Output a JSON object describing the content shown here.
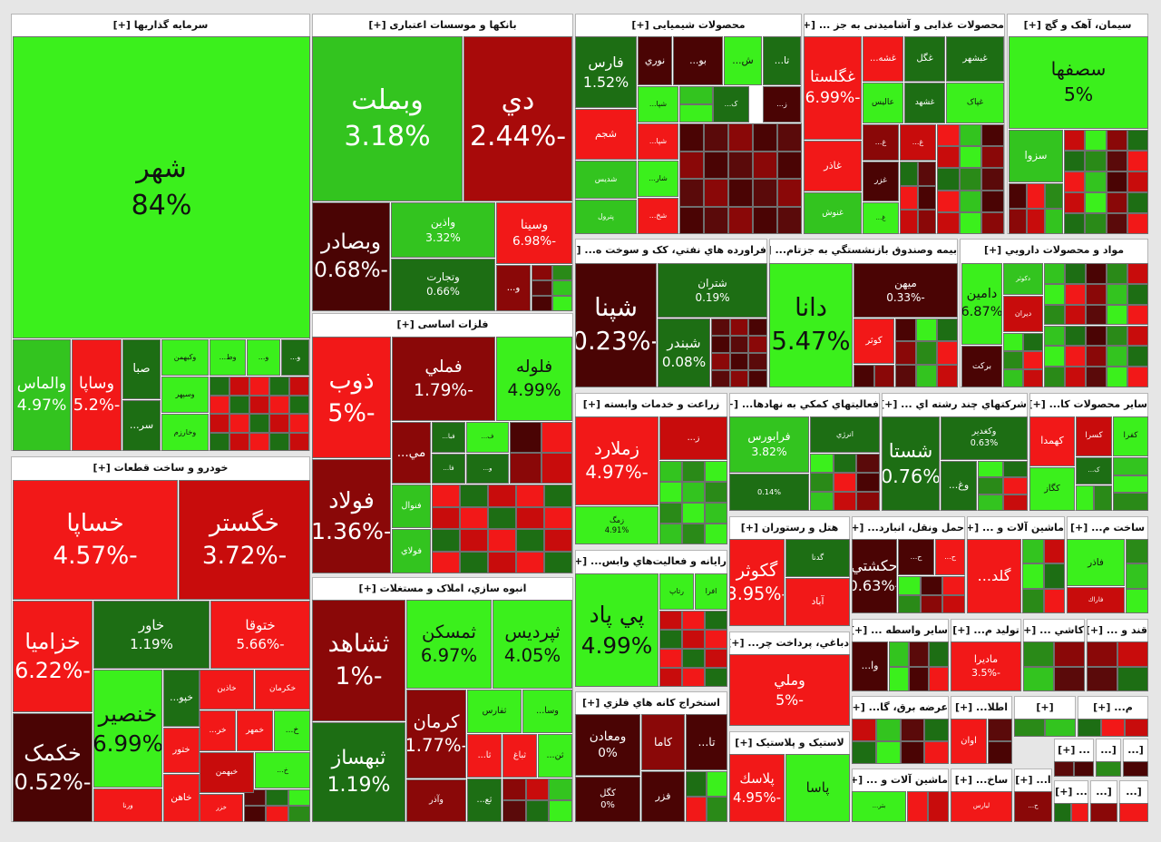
{
  "sectors": [
    {
      "title": "سرمایه گذاریها [+]",
      "tiles": [
        {
          "label": "شهر",
          "change": "84%",
          "color": "#3bf01c"
        },
        {
          "label": "والماس",
          "change": "4.97%",
          "color": "#33c41f"
        },
        {
          "label": "وساپا",
          "change": "-5.2%",
          "color": "#f21818"
        },
        {
          "label": "صبا",
          "color": "#1d6e14"
        },
        {
          "label": "وکبهمن",
          "color": "#3bf01c"
        },
        {
          "label": "وط...",
          "color": "#3bf01c"
        },
        {
          "label": "و...",
          "color": "#3bf01c"
        },
        {
          "label": "و...",
          "color": "#1d6e14"
        },
        {
          "label": "سر...",
          "color": "#1d6e14"
        },
        {
          "label": "وسپهر",
          "color": "#3bf01c"
        },
        {
          "label": "وخارزم",
          "color": "#3bf01c"
        }
      ]
    },
    {
      "title": "بانکها و موسسات اعتباری [+]",
      "tiles": [
        {
          "label": "وبملت",
          "change": "3.18%",
          "color": "#33c41f"
        },
        {
          "label": "دي",
          "change": "-2.44%",
          "color": "#a80a0a"
        },
        {
          "label": "وبصادر",
          "change": "-0.68%",
          "color": "#4a0404"
        },
        {
          "label": "واذین",
          "change": "3.32%",
          "color": "#33c41f"
        },
        {
          "label": "وتجارت",
          "change": "0.66%",
          "color": "#1d6e14"
        },
        {
          "label": "وسینا",
          "change": "-6.98%",
          "color": "#f21818"
        },
        {
          "label": "و...",
          "color": "#8a0808"
        }
      ]
    },
    {
      "title": "فلزات اساسی [+]",
      "tiles": [
        {
          "label": "ذوب",
          "change": "-5%",
          "color": "#f21818"
        },
        {
          "label": "فملي",
          "change": "-1.79%",
          "color": "#8a0808"
        },
        {
          "label": "فلوله",
          "change": "4.99%",
          "color": "#3bf01c"
        },
        {
          "label": "فولاد",
          "change": "-1.36%",
          "color": "#8a0808"
        },
        {
          "label": "مي...",
          "color": "#8a0808"
        },
        {
          "label": "فبا...",
          "color": "#1d6e14"
        },
        {
          "label": "ف...",
          "color": "#3bf01c"
        },
        {
          "label": "فا...",
          "color": "#1d6e14"
        },
        {
          "label": "و...",
          "color": "#1d6e14"
        },
        {
          "label": "فنوال",
          "color": "#33c41f"
        },
        {
          "label": "فولاي",
          "color": "#33c41f"
        }
      ]
    },
    {
      "title": "خودرو و ساخت قطعات [+]",
      "tiles": [
        {
          "label": "خساپا",
          "change": "-4.57%",
          "color": "#f21818"
        },
        {
          "label": "خگستر",
          "change": "-3.72%",
          "color": "#c80c0c"
        },
        {
          "label": "خزامیا",
          "change": "-6.22%",
          "color": "#f21818"
        },
        {
          "label": "خاور",
          "change": "1.19%",
          "color": "#1d6e14"
        },
        {
          "label": "ختوقا",
          "change": "-5.66%",
          "color": "#f21818"
        },
        {
          "label": "خکمک",
          "change": "-0.52%",
          "color": "#4a0404"
        },
        {
          "label": "خنصیر",
          "change": "6.99%",
          "color": "#3bf01c"
        },
        {
          "label": "ورنا",
          "color": "#f21818"
        },
        {
          "label": "خپو...",
          "color": "#1d6e14"
        },
        {
          "label": "خاذين",
          "color": "#f21818"
        },
        {
          "label": "خكرمان",
          "color": "#f21818"
        },
        {
          "label": "خر...",
          "color": "#f21818"
        },
        {
          "label": "خمهر",
          "color": "#f21818"
        },
        {
          "label": "خ...",
          "color": "#3bf01c"
        },
        {
          "label": "ختور",
          "color": "#f21818"
        },
        {
          "label": "خبهمن",
          "color": "#c80c0c"
        },
        {
          "label": "خ...",
          "color": "#3bf01c"
        },
        {
          "label": "خاهن",
          "color": "#f21818"
        },
        {
          "label": "خزر",
          "color": "#f21818"
        }
      ]
    },
    {
      "title": "انبوه سازي، املاک و مستغلات [+]",
      "tiles": [
        {
          "label": "ثشاهد",
          "change": "-1%",
          "color": "#8a0808"
        },
        {
          "label": "ثبهساز",
          "change": "1.19%",
          "color": "#1d6e14"
        },
        {
          "label": "ثمسكن",
          "change": "6.97%",
          "color": "#3bf01c"
        },
        {
          "label": "ثپردیس",
          "change": "4.05%",
          "color": "#3bf01c"
        },
        {
          "label": "کرمان",
          "change": "-1.77%",
          "color": "#8a0808"
        },
        {
          "label": "وآذر",
          "color": "#8a0808"
        },
        {
          "label": "ثفارس",
          "color": "#3bf01c"
        },
        {
          "label": "وسا...",
          "color": "#3bf01c"
        },
        {
          "label": "ثا...",
          "color": "#f21818"
        },
        {
          "label": "ثباغ",
          "color": "#f21818"
        },
        {
          "label": "ثن...",
          "color": "#3bf01c"
        },
        {
          "label": "ثع...",
          "color": "#1d6e14"
        }
      ]
    },
    {
      "title": "محصولات شیمیایی [+]",
      "tiles": [
        {
          "label": "فارس",
          "change": "1.52%",
          "color": "#1d6e14"
        },
        {
          "label": "نوري",
          "color": "#4a0404"
        },
        {
          "label": "بو...",
          "color": "#4a0404"
        },
        {
          "label": "ش...",
          "color": "#3bf01c"
        },
        {
          "label": "تا...",
          "color": "#1d6e14"
        },
        {
          "label": "شپا...",
          "color": "#3bf01c"
        },
        {
          "label": "ک...",
          "color": "#1d6e14"
        },
        {
          "label": "ز...",
          "color": "#4a0404"
        },
        {
          "label": "شجم",
          "color": "#f21818"
        },
        {
          "label": "شپا...",
          "color": "#f21818"
        },
        {
          "label": "شار...",
          "color": "#3bf01c"
        },
        {
          "label": "شدیس",
          "color": "#33c41f"
        },
        {
          "label": "پترول",
          "color": "#33c41f"
        },
        {
          "label": "شخ...",
          "color": "#f21818"
        }
      ]
    },
    {
      "title": "محصولات غذایی و آشامیدنی به جز ... [+]",
      "tiles": [
        {
          "label": "غگلستا",
          "change": "-6.99%",
          "color": "#f21818"
        },
        {
          "label": "غشه...",
          "color": "#f21818"
        },
        {
          "label": "غگل",
          "color": "#1d6e14"
        },
        {
          "label": "غبشهر",
          "color": "#1d6e14"
        },
        {
          "label": "عالیس",
          "color": "#3bf01c"
        },
        {
          "label": "غشهد",
          "color": "#1d6e14"
        },
        {
          "label": "غپاک",
          "color": "#3bf01c"
        },
        {
          "label": "غ...",
          "color": "#8a0808"
        },
        {
          "label": "غ...",
          "color": "#c80c0c"
        },
        {
          "label": "غاذر",
          "color": "#f21818"
        },
        {
          "label": "غزر",
          "color": "#4a0404"
        },
        {
          "label": "غنوش",
          "color": "#33c41f"
        },
        {
          "label": "غ...",
          "color": "#3bf01c"
        }
      ]
    },
    {
      "title": "سیمان، آهک و گچ [+]",
      "tiles": [
        {
          "label": "سصفها",
          "change": "5%",
          "color": "#3bf01c"
        },
        {
          "label": "سزوا",
          "color": "#33c41f"
        }
      ]
    },
    {
      "title": "فراورده هاي نفتي، کک و سوخت ه... [+]",
      "tiles": [
        {
          "label": "شپنا",
          "change": "-0.23%",
          "color": "#4a0404"
        },
        {
          "label": "شتران",
          "change": "0.19%",
          "color": "#1d6e14"
        },
        {
          "label": "شبندر",
          "change": "0.08%",
          "color": "#1d6e14"
        }
      ]
    },
    {
      "title": "بیمه وصندوق بازنشستگي به جزتام... [+]",
      "tiles": [
        {
          "label": "دانا",
          "change": "5.47%",
          "color": "#3bf01c"
        },
        {
          "label": "ميهن",
          "change": "-0.33%",
          "color": "#4a0404"
        },
        {
          "label": "کوثر",
          "color": "#f21818"
        }
      ]
    },
    {
      "title": "مواد و محصولات دارويي [+]",
      "tiles": [
        {
          "label": "دامين",
          "change": "6.87%",
          "color": "#3bf01c"
        },
        {
          "label": "دکوثر",
          "color": "#33c41f"
        },
        {
          "label": "ديران",
          "color": "#c80c0c"
        },
        {
          "label": "برکت",
          "color": "#4a0404"
        }
      ]
    },
    {
      "title": "زراعت و خدمات وابسته [+]",
      "tiles": [
        {
          "label": "زملارد",
          "change": "-4.97%",
          "color": "#f21818"
        },
        {
          "label": "ز...",
          "color": "#c80c0c"
        },
        {
          "label": "زمگ",
          "change": "4.91%",
          "color": "#3bf01c"
        }
      ]
    },
    {
      "title": "فعاليتهاي کمکي به نهادها... [+]",
      "tiles": [
        {
          "label": "فرابورس",
          "change": "3.82%",
          "color": "#33c41f"
        },
        {
          "change": "0.14%",
          "color": "#1d6e14"
        },
        {
          "label": "انرژي",
          "color": "#1d6e14"
        }
      ]
    },
    {
      "title": "شرکتهاي چند رشته اي ... [+]",
      "tiles": [
        {
          "label": "شستا",
          "change": "0.76%",
          "color": "#1d6e14"
        },
        {
          "label": "وكغدير",
          "change": "0.63%",
          "color": "#1d6e14"
        },
        {
          "label": "وغ...",
          "color": "#1d6e14"
        }
      ]
    },
    {
      "title": "ساير محصولات کا... [+]",
      "tiles": [
        {
          "label": "کهمدا",
          "color": "#f21818"
        },
        {
          "label": "کسرا",
          "color": "#c80c0c"
        },
        {
          "label": "کفرا",
          "color": "#3bf01c"
        },
        {
          "label": "ک...",
          "color": "#1d6e14"
        },
        {
          "label": "کگاز",
          "color": "#3bf01c"
        }
      ]
    },
    {
      "title": "رایانه و فعاليت‌هاي وابس... [+]",
      "tiles": [
        {
          "label": "پي پاد",
          "change": "4.99%",
          "color": "#3bf01c"
        },
        {
          "label": "رتاپ",
          "color": "#3bf01c"
        },
        {
          "label": "افرا",
          "color": "#3bf01c"
        }
      ]
    },
    {
      "title": "استخراج کانه هاي فلزي [+]",
      "tiles": [
        {
          "label": "ومعادن",
          "change": "0%",
          "color": "#4a0404"
        },
        {
          "label": "كگل",
          "change": "0%",
          "color": "#4a0404"
        },
        {
          "label": "کاما",
          "color": "#8a0808"
        },
        {
          "label": "تا...",
          "color": "#4a0404"
        },
        {
          "label": "فزر",
          "color": "#4a0404"
        }
      ]
    },
    {
      "title": "هتل و رستوران [+]",
      "tiles": [
        {
          "label": "گکوثر",
          "change": "-3.95%",
          "color": "#f21818"
        },
        {
          "label": "گدنا",
          "color": "#1d6e14"
        },
        {
          "label": "آباد",
          "color": "#f21818"
        }
      ]
    },
    {
      "title": "دباغي، پرداخت چر... [+]",
      "tiles": [
        {
          "label": "وملي",
          "change": "-5%",
          "color": "#f21818"
        }
      ]
    },
    {
      "title": "لاستیک و پلاستیک [+]",
      "tiles": [
        {
          "label": "پلاسك",
          "change": "-4.95%",
          "color": "#f21818"
        },
        {
          "label": "پاسا",
          "color": "#3bf01c"
        }
      ]
    },
    {
      "title": "حمل ونقل، انبارد... [+]",
      "tiles": [
        {
          "label": "حكشتي",
          "change": "-0.63%",
          "color": "#4a0404"
        },
        {
          "label": "ح...",
          "color": "#4a0404"
        },
        {
          "label": "ح...",
          "color": "#f21818"
        }
      ]
    },
    {
      "title": "ماشين آلات و ... [+]",
      "tiles": [
        {
          "label": "گلد...",
          "color": "#f21818"
        }
      ]
    },
    {
      "title": "ساخت م... [+]",
      "tiles": [
        {
          "label": "فاذر",
          "color": "#3bf01c"
        },
        {
          "label": "فاراك",
          "color": "#c80c0c"
        }
      ]
    },
    {
      "title": "ساير واسطه ... [+]",
      "tiles": [
        {
          "label": "وا...",
          "color": "#4a0404"
        }
      ]
    },
    {
      "title": "توليد م... [+]",
      "tiles": [
        {
          "label": "مادیرا",
          "change": "-3.5%",
          "color": "#f21818"
        }
      ]
    },
    {
      "title": "کاشي ... [+]",
      "tiles": []
    },
    {
      "title": "قند و ... [+]",
      "tiles": []
    },
    {
      "title": "عرضه برق، گا... [+]",
      "tiles": []
    },
    {
      "title": "اطلا... [+]",
      "tiles": [
        {
          "label": "اوان",
          "color": "#f21818"
        }
      ]
    },
    {
      "title": "[+]",
      "tiles": []
    },
    {
      "title": "م... [+]",
      "tiles": []
    },
    {
      "title": "ماشين آلات و ... [+]",
      "tiles": [
        {
          "label": "بتر...",
          "color": "#3bf01c"
        }
      ]
    },
    {
      "title": "ساخ... [+]",
      "tiles": [
        {
          "label": "ليارس",
          "color": "#f21818"
        }
      ]
    },
    {
      "title": "ا... [+]",
      "tiles": [
        {
          "label": "ح...",
          "color": "#8a0808"
        }
      ]
    },
    {
      "title": "... [+]",
      "tiles": []
    },
    {
      "title": "[...",
      "tiles": []
    },
    {
      "title": "[...",
      "tiles": []
    },
    {
      "title": "... [+]",
      "tiles": []
    },
    {
      "title": "[...",
      "tiles": []
    },
    {
      "title": "[...",
      "tiles": []
    }
  ]
}
